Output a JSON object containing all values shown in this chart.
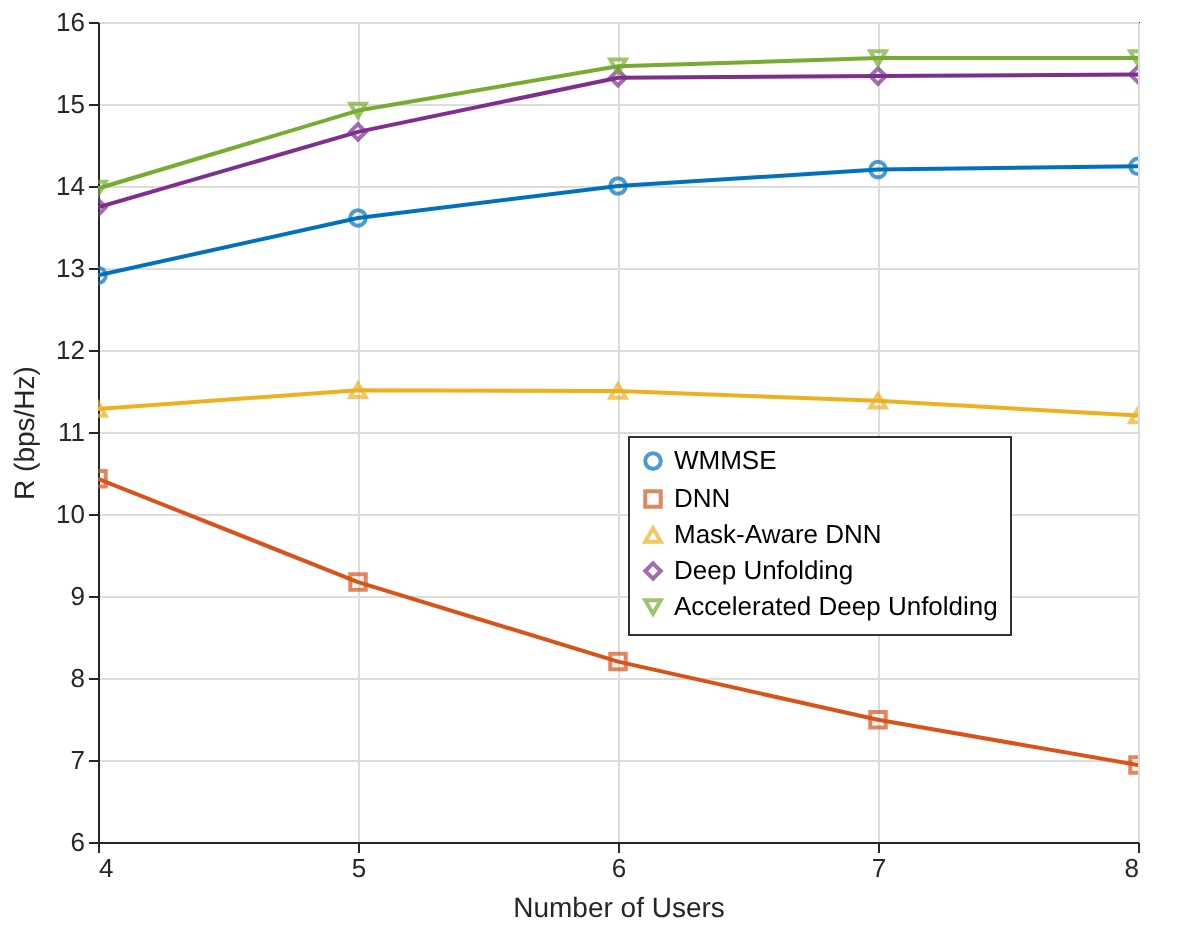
{
  "chart_data": {
    "type": "line",
    "xlabel": "Number of Users",
    "ylabel": "R (bps/Hz)",
    "x": [
      4,
      5,
      6,
      7,
      8
    ],
    "series": [
      {
        "name": "WMMSE",
        "color": "#0072bd",
        "marker": "circle",
        "values": [
          12.91,
          13.61,
          14.0,
          14.2,
          14.24
        ]
      },
      {
        "name": "DNN",
        "color": "#d95319",
        "marker": "square",
        "values": [
          10.43,
          9.17,
          8.2,
          7.49,
          6.94
        ]
      },
      {
        "name": "Mask-Aware DNN",
        "color": "#edb120",
        "marker": "triangle",
        "values": [
          11.28,
          11.51,
          11.5,
          11.38,
          11.2
        ]
      },
      {
        "name": "Deep Unfolding",
        "color": "#7e2f8e",
        "marker": "diamond",
        "values": [
          13.74,
          14.66,
          15.32,
          15.34,
          15.36
        ]
      },
      {
        "name": "Accelerated Deep Unfolding",
        "color": "#77ac30",
        "marker": "triangle-down",
        "values": [
          13.97,
          14.92,
          15.46,
          15.56,
          15.56
        ]
      }
    ],
    "xlim": [
      4,
      8
    ],
    "xticks": [
      4,
      5,
      6,
      7,
      8
    ],
    "ylim": [
      6,
      16
    ],
    "yticks": [
      6,
      7,
      8,
      9,
      10,
      11,
      12,
      13,
      14,
      15,
      16
    ],
    "grid": true,
    "legend": "right",
    "line_style": "solid"
  }
}
